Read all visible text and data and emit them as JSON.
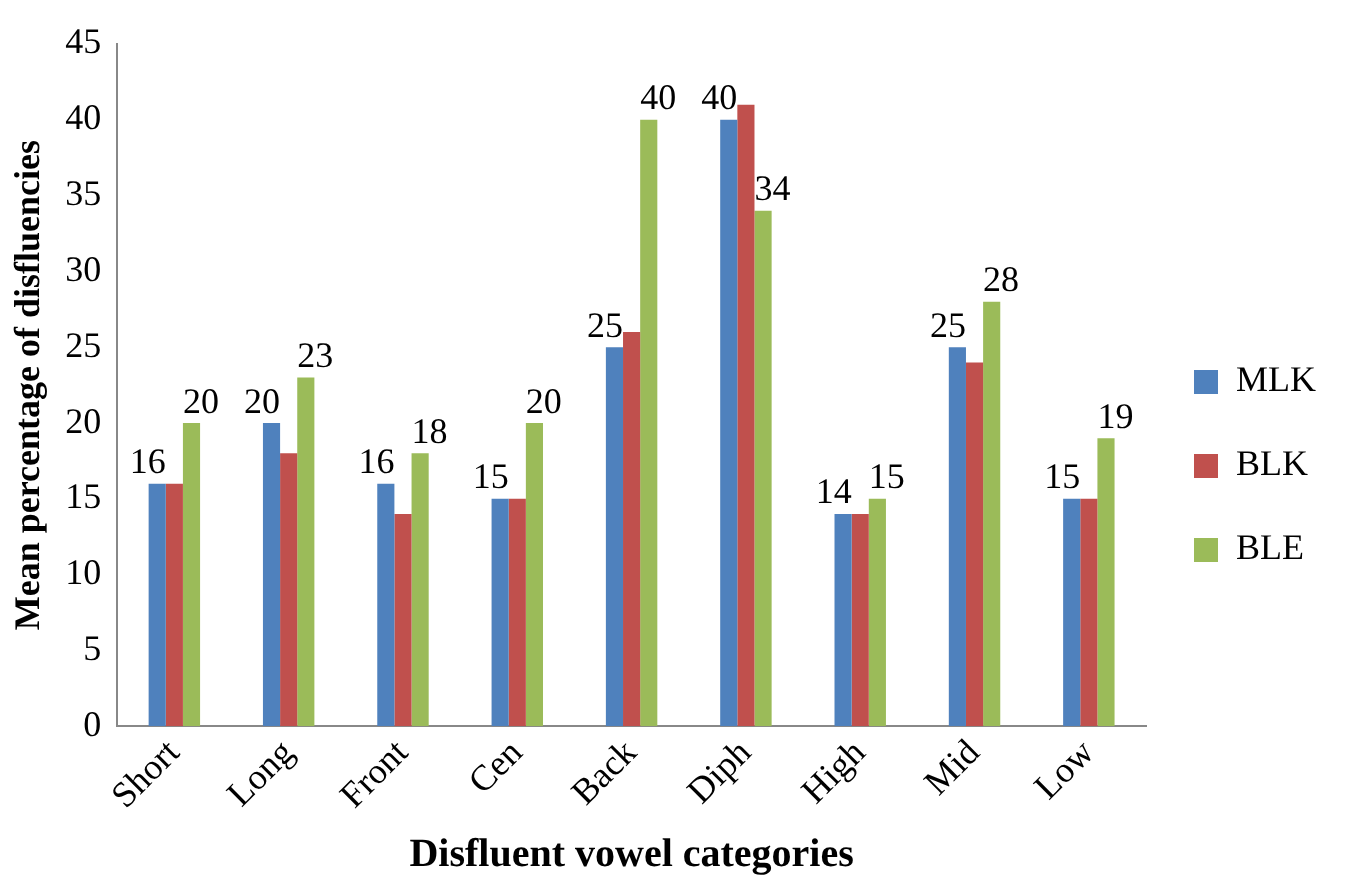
{
  "chart_data": {
    "type": "bar",
    "xlabel": "Disfluent vowel categories",
    "ylabel": "Mean percentage of disfluencies",
    "categories": [
      "Short",
      "Long",
      "Front",
      "Cen",
      "Back",
      "Diph",
      "High",
      "Mid",
      "Low"
    ],
    "series": [
      {
        "name": "MLK",
        "color": "#4f81bd",
        "values": [
          16,
          20,
          16,
          15,
          25,
          40,
          14,
          25,
          15
        ],
        "value_labels": [
          "16",
          "20",
          "16",
          "15",
          "25",
          "40",
          "14",
          "25",
          "15"
        ]
      },
      {
        "name": "BLK",
        "color": "#c0504d",
        "values": [
          16,
          18,
          14,
          15,
          26,
          41,
          14,
          24,
          15
        ]
      },
      {
        "name": "BLE",
        "color": "#9bbb59",
        "values": [
          20,
          23,
          18,
          20,
          40,
          34,
          15,
          28,
          19
        ],
        "value_labels": [
          "20",
          "23",
          "18",
          "20",
          "40",
          "34",
          "15",
          "28",
          "19"
        ]
      }
    ],
    "ylim": [
      0,
      45
    ],
    "yticks": [
      0,
      5,
      10,
      15,
      20,
      25,
      30,
      35,
      40,
      45
    ],
    "grid": false,
    "legend": "right"
  }
}
